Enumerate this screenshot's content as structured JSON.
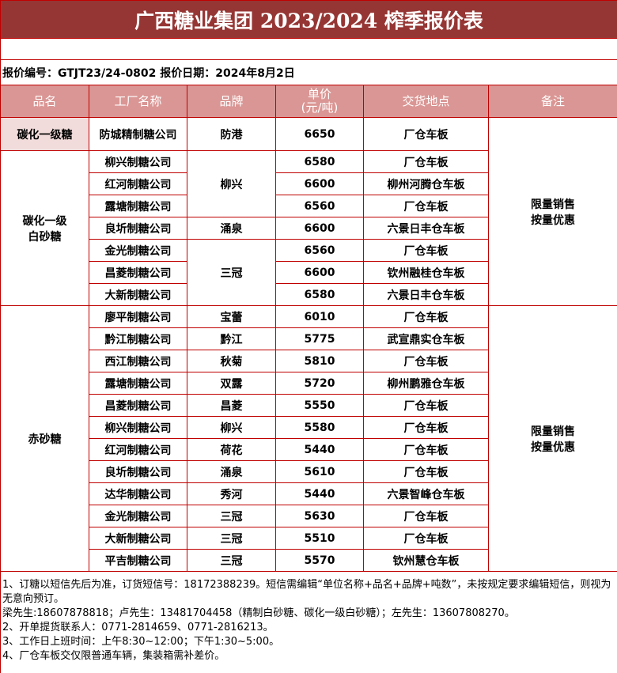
{
  "title": "广西糖业集团 2023/2024 榨季报价表",
  "info": "报价编号：GTJT23/24-0802 报价日期：2024年8月2日",
  "headers": [
    "品名",
    "工厂名称",
    "品牌",
    "单价\n(元/吨)",
    "交货地点",
    "备注"
  ],
  "remark": "限量销售\n按量优惠",
  "groups": [
    {
      "product": "碳化一级糖",
      "rows": [
        {
          "factory": "防城精制糖公司",
          "brand": "防港",
          "span": 1,
          "price": "6650",
          "place": "厂仓车板"
        }
      ]
    },
    {
      "product": "碳化一级\n白砂糖",
      "rows": [
        {
          "factory": "柳兴制糖公司",
          "brand": "柳兴",
          "span": 3,
          "price": "6580",
          "place": "厂仓车板"
        },
        {
          "factory": "红河制糖公司",
          "price": "6600",
          "place": "柳州河腾仓车板"
        },
        {
          "factory": "露塘制糖公司",
          "price": "6560",
          "place": "厂仓车板"
        },
        {
          "factory": "良圻制糖公司",
          "brand": "涌泉",
          "span": 1,
          "price": "6600",
          "place": "六景日丰仓车板"
        },
        {
          "factory": "金光制糖公司",
          "brand": "三冠",
          "span": 3,
          "price": "6560",
          "place": "厂仓车板"
        },
        {
          "factory": "昌菱制糖公司",
          "price": "6600",
          "place": "钦州融桂仓车板"
        },
        {
          "factory": "大新制糖公司",
          "price": "6580",
          "place": "六景日丰仓车板"
        }
      ]
    },
    {
      "product": "赤砂糖",
      "rows": [
        {
          "factory": "廖平制糖公司",
          "brand": "宝蕾",
          "span": 1,
          "price": "6010",
          "place": "厂仓车板"
        },
        {
          "factory": "黔江制糖公司",
          "brand": "黔江",
          "span": 1,
          "price": "5775",
          "place": "武宣鼎实仓车板"
        },
        {
          "factory": "西江制糖公司",
          "brand": "秋菊",
          "span": 1,
          "price": "5810",
          "place": "厂仓车板"
        },
        {
          "factory": "露塘制糖公司",
          "brand": "双露",
          "span": 1,
          "price": "5720",
          "place": "柳州鹏雅仓车板"
        },
        {
          "factory": "昌菱制糖公司",
          "brand": "昌菱",
          "span": 1,
          "price": "5550",
          "place": "厂仓车板"
        },
        {
          "factory": "柳兴制糖公司",
          "brand": "柳兴",
          "span": 1,
          "price": "5580",
          "place": "厂仓车板"
        },
        {
          "factory": "红河制糖公司",
          "brand": "荷花",
          "span": 1,
          "price": "5440",
          "place": "厂仓车板"
        },
        {
          "factory": "良圻制糖公司",
          "brand": "涌泉",
          "span": 1,
          "price": "5610",
          "place": "厂仓车板"
        },
        {
          "factory": "达华制糖公司",
          "brand": "秀河",
          "span": 1,
          "price": "5440",
          "place": "六景智峰仓车板"
        },
        {
          "factory": "金光制糖公司",
          "brand": "三冠",
          "span": 1,
          "price": "5630",
          "place": "厂仓车板"
        },
        {
          "factory": "大新制糖公司",
          "brand": "三冠",
          "span": 1,
          "price": "5510",
          "place": "厂仓车板"
        },
        {
          "factory": "平吉制糖公司",
          "brand": "三冠",
          "span": 1,
          "price": "5570",
          "place": "钦州慧仓车板"
        }
      ]
    }
  ],
  "notes": [
    "1、订糖以短信先后为准，订货短信号：18172388239。短信需编辑“单位名称+品名+品牌+吨数”，未按规定要求编辑短信，则视为无意向预订。",
    "梁先生:18607878818；卢先生：13481704458（精制白砂糖、碳化一级白砂糖）；左先生：13607808270。",
    "2、开单提货联系人：0771-2814659、0771-2816213。",
    "3、工作日上班时间：上午8:30~12:00；下午1:30~5:00。",
    "4、厂仓车板交仅限普通车辆，集装箱需补差价。"
  ],
  "colors": {
    "title_bg": "#963634",
    "header_bg": "#da9694",
    "border": "#c00000",
    "highlight": "#f2dcdb"
  }
}
